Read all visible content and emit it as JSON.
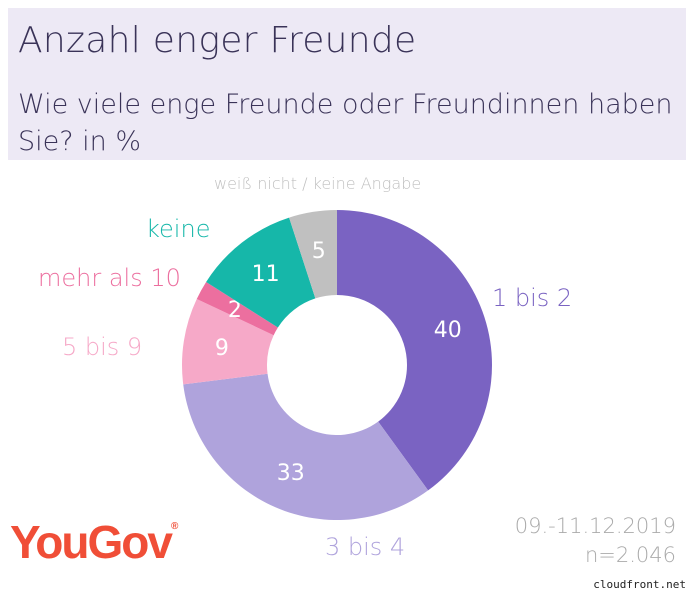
{
  "header": {
    "title": "Anzahl enger Freunde",
    "subtitle": "Wie viele enge Freunde oder Freundinnen haben Sie? in %"
  },
  "chart_data": {
    "type": "pie",
    "donut": true,
    "categories": [
      "1 bis 2",
      "3 bis 4",
      "5 bis 9",
      "mehr als 10",
      "keine",
      "weiß nicht / keine Angabe"
    ],
    "values": [
      40,
      33,
      9,
      2,
      11,
      5
    ],
    "colors": [
      "#7a63c2",
      "#afa3dc",
      "#f6a9c8",
      "#ec6f9f",
      "#16b7a9",
      "#c0c0c0"
    ],
    "label_colors": [
      "#7a63c2",
      "#afa3dc",
      "#f6a9c8",
      "#ec6f9f",
      "#16b7a9",
      "#c0c0c0"
    ]
  },
  "footer": {
    "logo": "YouGov",
    "date": "09.-11.12.2019",
    "n": "n=2.046",
    "source": "cloudfront.net"
  }
}
